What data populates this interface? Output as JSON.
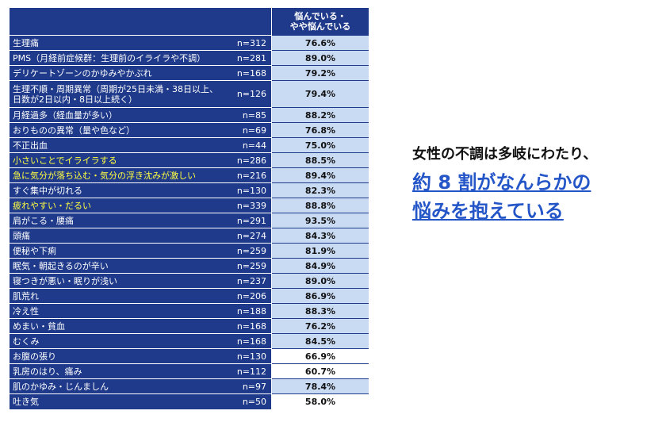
{
  "chart_data": {
    "type": "table",
    "header": {
      "label": "",
      "n": "",
      "value": "悩んでいる・\nやや悩んでいる"
    },
    "rows": [
      {
        "label": "生理痛",
        "n": "n=312",
        "value": "76.6%",
        "highlight": false,
        "shaded": true
      },
      {
        "label": "PMS（月経前症候群：生理前のイライラや不調）",
        "n": "n=281",
        "value": "89.0%",
        "highlight": false,
        "shaded": true
      },
      {
        "label": "デリケートゾーンのかゆみやかぶれ",
        "n": "n=168",
        "value": "79.2%",
        "highlight": false,
        "shaded": true
      },
      {
        "label": "生理不順・周期異常（周期が25日未満・38日以上、\n日数が2日以内・8日以上続く）",
        "n": "n=126",
        "value": "79.4%",
        "highlight": false,
        "shaded": true
      },
      {
        "label": "月経過多（経血量が多い）",
        "n": "n=85",
        "value": "88.2%",
        "highlight": false,
        "shaded": true
      },
      {
        "label": "おりものの異常（量や色など）",
        "n": "n=69",
        "value": "76.8%",
        "highlight": false,
        "shaded": true
      },
      {
        "label": "不正出血",
        "n": "n=44",
        "value": "75.0%",
        "highlight": false,
        "shaded": true
      },
      {
        "label": "小さいことでイライラする",
        "n": "n=286",
        "value": "88.5%",
        "highlight": true,
        "shaded": true
      },
      {
        "label": "急に気分が落ち込む・気分の浮き沈みが激しい",
        "n": "n=216",
        "value": "89.4%",
        "highlight": true,
        "shaded": true
      },
      {
        "label": "すぐ集中が切れる",
        "n": "n=130",
        "value": "82.3%",
        "highlight": false,
        "shaded": true
      },
      {
        "label": "疲れやすい・だるい",
        "n": "n=339",
        "value": "88.8%",
        "highlight": true,
        "shaded": true
      },
      {
        "label": "肩がこる・腰痛",
        "n": "n=291",
        "value": "93.5%",
        "highlight": false,
        "shaded": true
      },
      {
        "label": "頭痛",
        "n": "n=274",
        "value": "84.3%",
        "highlight": false,
        "shaded": true
      },
      {
        "label": "便秘や下痢",
        "n": "n=259",
        "value": "81.9%",
        "highlight": false,
        "shaded": true
      },
      {
        "label": "眠気・朝起きるのが辛い",
        "n": "n=259",
        "value": "84.9%",
        "highlight": false,
        "shaded": true
      },
      {
        "label": "寝つきが悪い・眠りが浅い",
        "n": "n=237",
        "value": "89.0%",
        "highlight": false,
        "shaded": true
      },
      {
        "label": "肌荒れ",
        "n": "n=206",
        "value": "86.9%",
        "highlight": false,
        "shaded": true
      },
      {
        "label": "冷え性",
        "n": "n=188",
        "value": "88.3%",
        "highlight": false,
        "shaded": true
      },
      {
        "label": "めまい・貧血",
        "n": "n=168",
        "value": "76.2%",
        "highlight": false,
        "shaded": true
      },
      {
        "label": "むくみ",
        "n": "n=168",
        "value": "84.5%",
        "highlight": false,
        "shaded": true
      },
      {
        "label": "お腹の張り",
        "n": "n=130",
        "value": "66.9%",
        "highlight": false,
        "shaded": false
      },
      {
        "label": "乳房のはり、痛み",
        "n": "n=112",
        "value": "60.7%",
        "highlight": false,
        "shaded": false
      },
      {
        "label": "肌のかゆみ・じんましん",
        "n": "n=97",
        "value": "78.4%",
        "highlight": false,
        "shaded": true
      },
      {
        "label": "吐き気",
        "n": "n=50",
        "value": "58.0%",
        "highlight": false,
        "shaded": false
      }
    ]
  },
  "headline": "女性の不調は多岐にわたり、",
  "emphasis": [
    "約 8 割がなんらかの",
    "悩みを抱えている"
  ],
  "colors": {
    "header_bg": "#1f3a8a",
    "highlight_text": "#ffff40",
    "value_shade": "#c9daf3",
    "emphasis": "#2456c8"
  }
}
